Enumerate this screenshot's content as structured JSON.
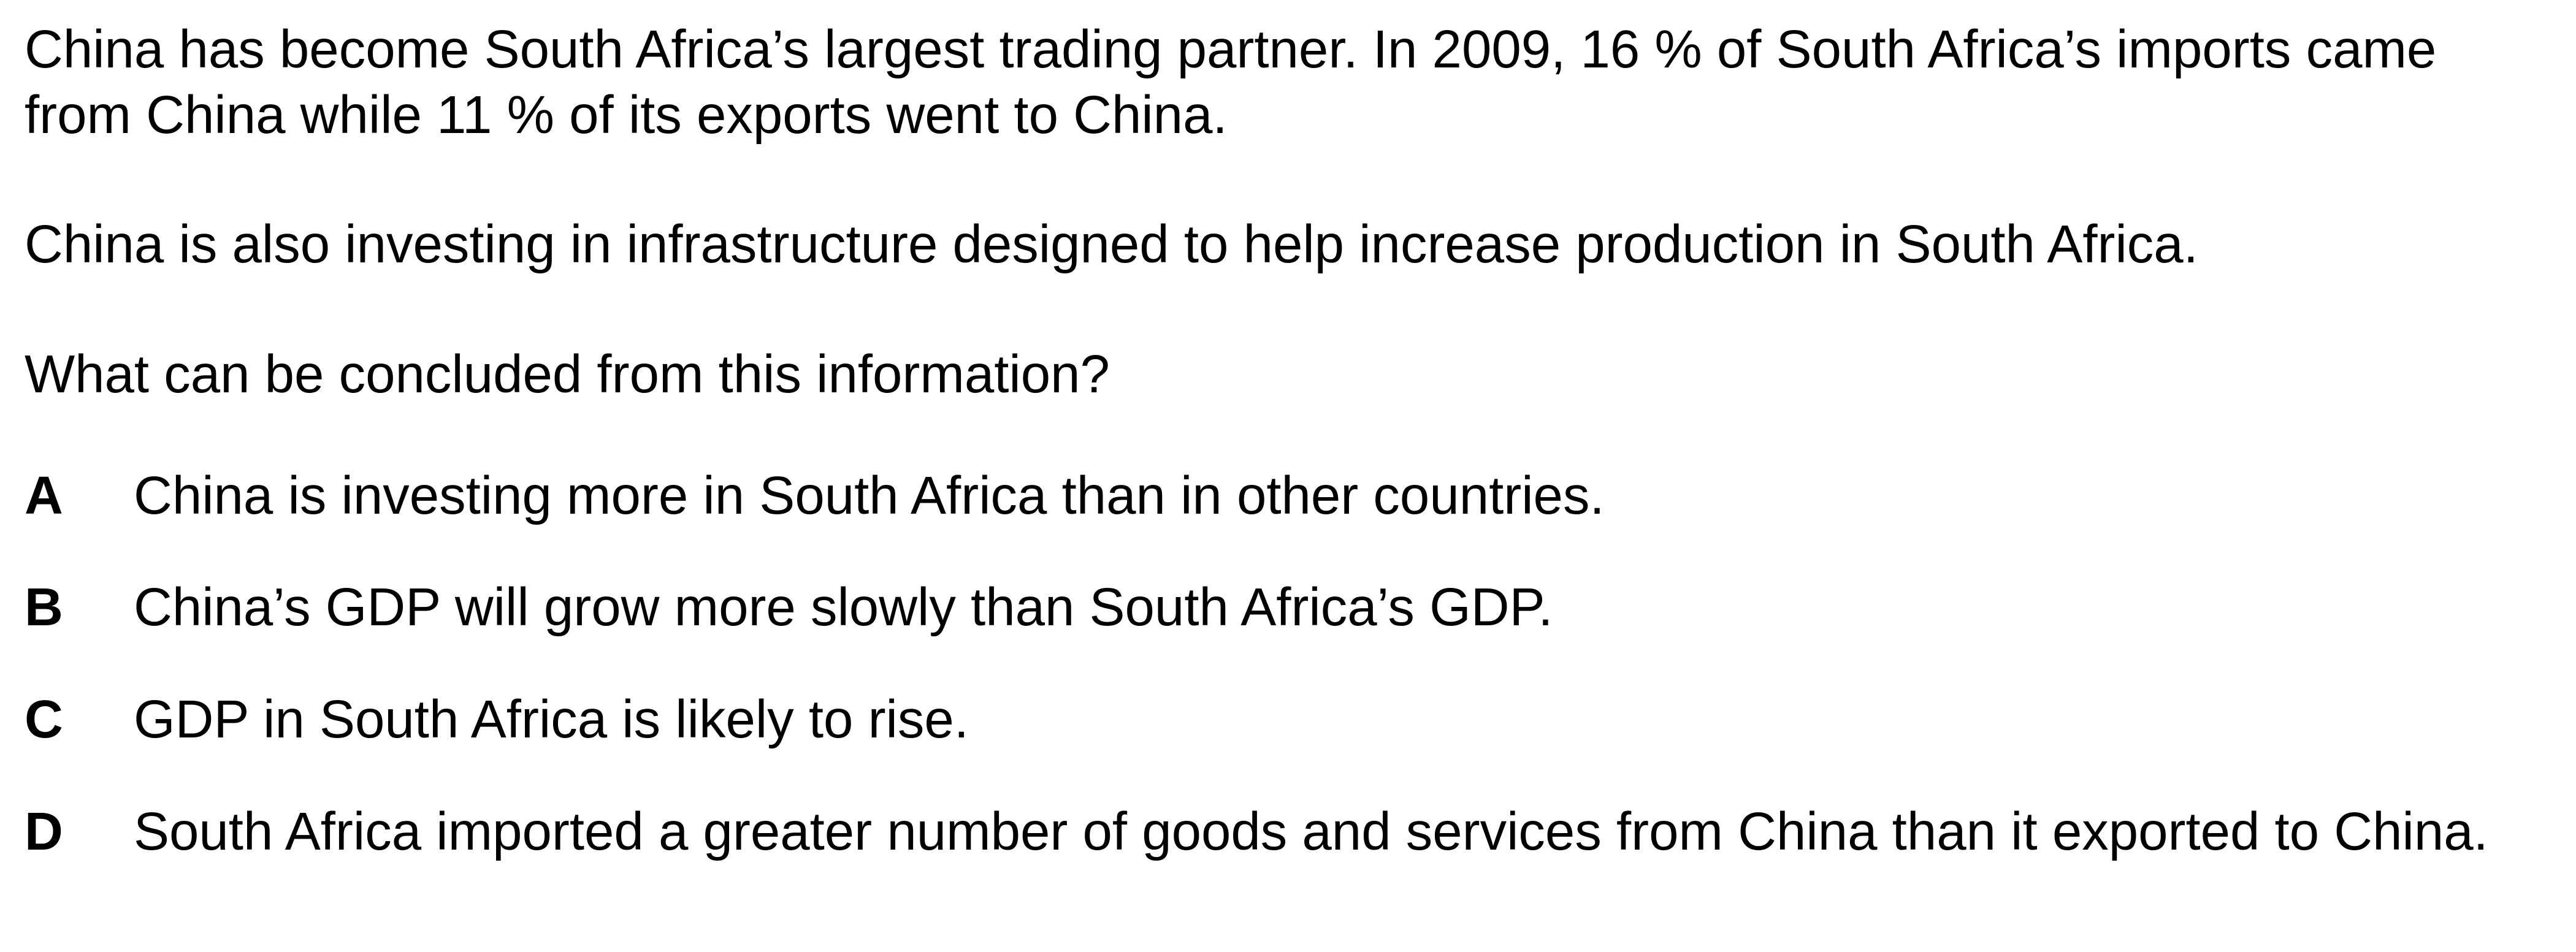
{
  "passage": {
    "paragraph_1": "China has become South Africa’s largest trading partner. In 2009, 16 % of South Africa’s imports came from China while 11 % of its exports went to China.",
    "paragraph_2": "China is also investing in infrastructure designed to help increase production in South Africa."
  },
  "question": "What can be concluded from this information?",
  "options": [
    {
      "letter": "A",
      "text": "China is investing more in South Africa than in other countries."
    },
    {
      "letter": "B",
      "text": "China’s GDP will grow more slowly than South Africa’s GDP."
    },
    {
      "letter": "C",
      "text": "GDP in South Africa is likely to rise."
    },
    {
      "letter": "D",
      "text": "South Africa imported a greater number of goods and services from China than it exported to China."
    }
  ]
}
